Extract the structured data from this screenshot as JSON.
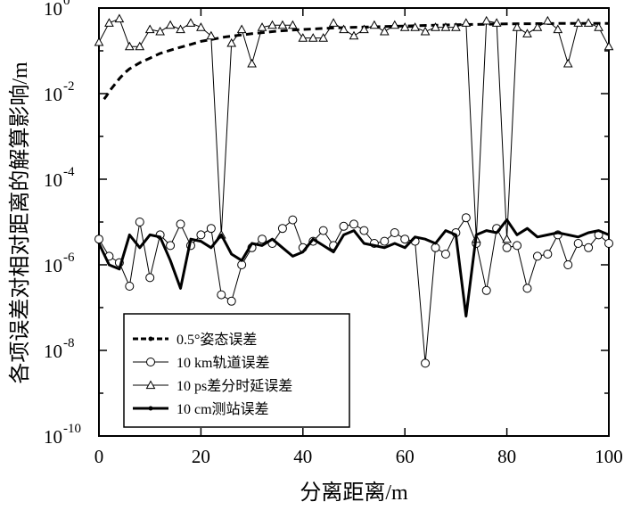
{
  "chart_data": {
    "type": "line",
    "title": "",
    "xlabel": "分离距离/m",
    "ylabel": "各项误差对相对距离的解算影响/m",
    "xlim": [
      0,
      100
    ],
    "ylim_log10": [
      -10,
      0
    ],
    "y_scale": "log",
    "x_ticks": [
      0,
      20,
      40,
      60,
      80,
      100
    ],
    "x_tick_labels": [
      "0",
      "20",
      "40",
      "60",
      "80",
      "100"
    ],
    "y_tick_exponents": [
      0,
      -2,
      -4,
      -6,
      -8,
      -10
    ],
    "y_tick_base": "10",
    "y_tick_exp_labels": [
      "0",
      "-2",
      "-4",
      "-6",
      "-8",
      "-10"
    ],
    "grid": false,
    "legend_position": "bottom-left",
    "series": [
      {
        "name": "0.5°姿态误差",
        "style": "dashed",
        "marker": "none",
        "color": "#000000",
        "x": [
          1,
          1.5,
          2,
          3,
          4,
          5,
          6,
          8,
          10,
          12,
          15,
          18,
          20,
          25,
          30,
          35,
          40,
          45,
          50,
          60,
          70,
          80,
          90,
          100
        ],
        "log10_y": [
          -2.13,
          -2.05,
          -1.95,
          -1.8,
          -1.65,
          -1.52,
          -1.42,
          -1.28,
          -1.17,
          -1.06,
          -0.95,
          -0.85,
          -0.78,
          -0.67,
          -0.6,
          -0.54,
          -0.5,
          -0.47,
          -0.45,
          -0.42,
          -0.39,
          -0.37,
          -0.36,
          -0.36
        ]
      },
      {
        "name": "10 km轨道误差",
        "style": "solid-thin",
        "marker": "circle",
        "color": "#000000",
        "x": [
          0,
          2,
          4,
          6,
          8,
          10,
          12,
          14,
          16,
          18,
          20,
          22,
          24,
          26,
          28,
          30,
          32,
          34,
          36,
          38,
          40,
          42,
          44,
          46,
          48,
          50,
          52,
          54,
          56,
          58,
          60,
          62,
          64,
          66,
          68,
          70,
          72,
          74,
          76,
          78,
          80,
          82,
          84,
          86,
          88,
          90,
          92,
          94,
          96,
          98,
          100
        ],
        "log10_y": [
          -5.4,
          -5.8,
          -5.95,
          -6.5,
          -5.0,
          -6.3,
          -5.3,
          -5.55,
          -5.05,
          -5.55,
          -5.3,
          -5.15,
          -6.7,
          -6.85,
          -6.0,
          -5.6,
          -5.4,
          -5.5,
          -5.15,
          -4.95,
          -5.6,
          -5.45,
          -5.2,
          -5.55,
          -5.1,
          -5.05,
          -5.2,
          -5.5,
          -5.45,
          -5.25,
          -5.4,
          -5.45,
          -8.3,
          -5.6,
          -5.75,
          -5.25,
          -4.9,
          -5.5,
          -6.6,
          -5.15,
          -5.6,
          -5.55,
          -6.55,
          -5.8,
          -5.75,
          -5.3,
          -6.0,
          -5.5,
          -5.6,
          -5.3,
          -5.5
        ]
      },
      {
        "name": "10 ps差分时延误差",
        "style": "solid-thin",
        "marker": "triangle",
        "color": "#000000",
        "x": [
          0,
          2,
          4,
          6,
          8,
          10,
          12,
          14,
          16,
          18,
          20,
          22,
          24,
          26,
          28,
          30,
          32,
          34,
          36,
          38,
          40,
          42,
          44,
          46,
          48,
          50,
          52,
          54,
          56,
          58,
          60,
          62,
          64,
          66,
          68,
          70,
          72,
          74,
          76,
          78,
          80,
          82,
          84,
          86,
          88,
          90,
          92,
          94,
          96,
          98,
          100
        ],
        "log10_y": [
          -0.8,
          -0.35,
          -0.25,
          -0.9,
          -0.9,
          -0.5,
          -0.55,
          -0.4,
          -0.5,
          -0.35,
          -0.45,
          -0.65,
          -5.3,
          -0.82,
          -0.5,
          -1.3,
          -0.45,
          -0.4,
          -0.4,
          -0.4,
          -0.7,
          -0.7,
          -0.7,
          -0.35,
          -0.5,
          -0.65,
          -0.5,
          -0.4,
          -0.55,
          -0.4,
          -0.45,
          -0.45,
          -0.55,
          -0.45,
          -0.45,
          -0.45,
          -0.35,
          -5.4,
          -0.3,
          -0.35,
          -5.4,
          -0.45,
          -0.6,
          -0.45,
          -0.3,
          -0.5,
          -1.3,
          -0.35,
          -0.35,
          -0.45,
          -0.9
        ]
      },
      {
        "name": "10 cm测站误差",
        "style": "solid-thick",
        "marker": "none",
        "color": "#000000",
        "x": [
          0,
          2,
          4,
          6,
          8,
          10,
          12,
          14,
          16,
          18,
          20,
          22,
          24,
          26,
          28,
          30,
          32,
          34,
          36,
          38,
          40,
          42,
          44,
          46,
          48,
          50,
          52,
          54,
          56,
          58,
          60,
          62,
          64,
          66,
          68,
          70,
          72,
          74,
          76,
          78,
          80,
          82,
          84,
          86,
          88,
          90,
          92,
          94,
          96,
          98,
          100
        ],
        "log10_y": [
          -5.5,
          -6.0,
          -6.1,
          -5.3,
          -5.6,
          -5.3,
          -5.35,
          -5.9,
          -6.55,
          -5.4,
          -5.45,
          -5.6,
          -5.3,
          -5.75,
          -5.9,
          -5.5,
          -5.55,
          -5.4,
          -5.6,
          -5.8,
          -5.7,
          -5.4,
          -5.55,
          -5.7,
          -5.3,
          -5.2,
          -5.5,
          -5.55,
          -5.6,
          -5.5,
          -5.6,
          -5.35,
          -5.4,
          -5.5,
          -5.2,
          -5.3,
          -7.2,
          -5.3,
          -5.2,
          -5.25,
          -4.95,
          -5.3,
          -5.15,
          -5.35,
          -5.3,
          -5.25,
          -5.3,
          -5.35,
          -5.25,
          -5.2,
          -5.3
        ]
      }
    ]
  }
}
